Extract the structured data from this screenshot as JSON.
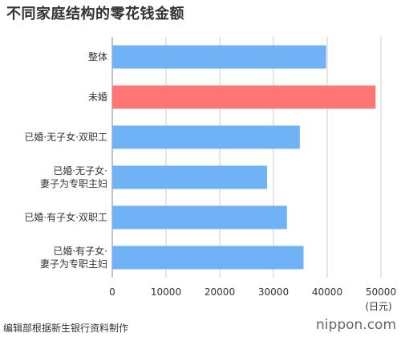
{
  "title": "不同家庭结构的零花钱金额",
  "footer": {
    "source": "编辑部根据新生银行资料制作",
    "logo": "nippon.com"
  },
  "colors": {
    "default_bar": "#6FB2F5",
    "highlight_bar": "#FF7675",
    "grid": "#CCCCCC",
    "zero_axis": "#888888"
  },
  "chart_data": {
    "type": "bar",
    "orientation": "horizontal",
    "title": "不同家庭结构的零花钱金额",
    "categories": [
      [
        "整体"
      ],
      [
        "未婚"
      ],
      [
        "已婚·无子女·双职工"
      ],
      [
        "已婚·无子女·",
        "妻子为专职主妇"
      ],
      [
        "已婚·有子女·双职工"
      ],
      [
        "已婚·有子女·",
        "妻子为专职主妇"
      ]
    ],
    "values": [
      39800,
      49000,
      34900,
      28800,
      32500,
      35600
    ],
    "highlight_index": 1,
    "xlim": [
      0,
      50000
    ],
    "xticks": [
      0,
      10000,
      20000,
      30000,
      40000,
      50000
    ],
    "unit_label": "(日元)",
    "grid": true
  }
}
